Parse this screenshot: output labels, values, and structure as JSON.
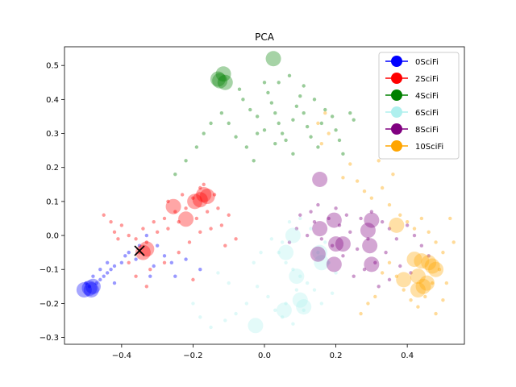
{
  "chart_data": {
    "type": "scatter",
    "title": "PCA",
    "xlabel": "",
    "ylabel": "",
    "xlim": [
      -0.56,
      0.56
    ],
    "ylim": [
      -0.32,
      0.555
    ],
    "x_ticks": [
      -0.4,
      -0.2,
      0.0,
      0.2,
      0.4
    ],
    "x_tick_labels": [
      "−0.4",
      "−0.2",
      "0.0",
      "0.2",
      "0.4"
    ],
    "y_ticks": [
      -0.3,
      -0.2,
      -0.1,
      0.0,
      0.1,
      0.2,
      0.3,
      0.4,
      0.5
    ],
    "y_tick_labels": [
      "−0.3",
      "−0.2",
      "−0.1",
      "0.0",
      "0.1",
      "0.2",
      "0.3",
      "0.4",
      "0.5"
    ],
    "grid": false,
    "legend_position": "top-right",
    "series": [
      {
        "name": "0SciFi",
        "color": "#0000ff",
        "small_points": [
          [
            -0.49,
            -0.15
          ],
          [
            -0.47,
            -0.14
          ],
          [
            -0.46,
            -0.13
          ],
          [
            -0.45,
            -0.12
          ],
          [
            -0.44,
            -0.11
          ],
          [
            -0.43,
            -0.1
          ],
          [
            -0.42,
            -0.09
          ],
          [
            -0.46,
            -0.1
          ],
          [
            -0.44,
            -0.08
          ],
          [
            -0.4,
            -0.08
          ],
          [
            -0.38,
            -0.05
          ],
          [
            -0.35,
            -0.03
          ],
          [
            -0.33,
            0.0
          ],
          [
            -0.3,
            -0.03
          ],
          [
            -0.28,
            -0.06
          ],
          [
            -0.26,
            -0.08
          ],
          [
            -0.22,
            -0.07
          ],
          [
            -0.18,
            -0.1
          ],
          [
            -0.25,
            -0.12
          ],
          [
            -0.31,
            -0.09
          ],
          [
            -0.36,
            -0.07
          ],
          [
            -0.39,
            -0.06
          ],
          [
            -0.48,
            -0.12
          ],
          [
            -0.5,
            -0.14
          ],
          [
            -0.42,
            -0.14
          ],
          [
            -0.32,
            -0.12
          ]
        ],
        "large_points": [
          [
            -0.49,
            -0.155
          ],
          [
            -0.485,
            -0.16
          ],
          [
            -0.505,
            -0.16
          ],
          [
            -0.48,
            -0.15
          ]
        ]
      },
      {
        "name": "2SciFi",
        "color": "#ff0000",
        "small_points": [
          [
            -0.43,
            0.04
          ],
          [
            -0.4,
            0.03
          ],
          [
            -0.42,
            0.01
          ],
          [
            -0.38,
            0.0
          ],
          [
            -0.36,
            -0.01
          ],
          [
            -0.34,
            0.02
          ],
          [
            -0.31,
            0.04
          ],
          [
            -0.28,
            0.05
          ],
          [
            -0.25,
            0.07
          ],
          [
            -0.22,
            0.08
          ],
          [
            -0.2,
            0.11
          ],
          [
            -0.18,
            0.14
          ],
          [
            -0.17,
            0.15
          ],
          [
            -0.14,
            0.12
          ],
          [
            -0.13,
            0.08
          ],
          [
            -0.16,
            0.07
          ],
          [
            -0.19,
            0.05
          ],
          [
            -0.24,
            0.04
          ],
          [
            -0.27,
            0.02
          ],
          [
            -0.3,
            0.01
          ],
          [
            -0.33,
            -0.02
          ],
          [
            -0.35,
            -0.05
          ],
          [
            -0.38,
            -0.08
          ],
          [
            -0.32,
            -0.1
          ],
          [
            -0.28,
            -0.08
          ],
          [
            -0.24,
            -0.05
          ],
          [
            -0.21,
            -0.02
          ],
          [
            -0.18,
            0.01
          ],
          [
            -0.15,
            0.02
          ],
          [
            -0.12,
            0.03
          ],
          [
            -0.1,
            0.06
          ],
          [
            -0.08,
            -0.01
          ],
          [
            -0.11,
            -0.03
          ],
          [
            -0.2,
            -0.13
          ],
          [
            -0.33,
            -0.15
          ],
          [
            -0.36,
            -0.12
          ],
          [
            -0.45,
            0.06
          ],
          [
            -0.41,
            -0.01
          ],
          [
            -0.27,
            0.1
          ],
          [
            -0.23,
            0.12
          ]
        ],
        "large_points": [
          [
            -0.255,
            0.085
          ],
          [
            -0.22,
            0.048
          ],
          [
            -0.195,
            0.1
          ],
          [
            -0.18,
            0.105
          ],
          [
            -0.17,
            0.12
          ],
          [
            -0.16,
            0.115
          ],
          [
            -0.33,
            -0.04
          ],
          [
            -0.34,
            -0.05
          ]
        ]
      },
      {
        "name": "4SciFi",
        "color": "#008000",
        "small_points": [
          [
            -0.07,
            0.43
          ],
          [
            -0.06,
            0.4
          ],
          [
            -0.04,
            0.37
          ],
          [
            -0.02,
            0.35
          ],
          [
            0.0,
            0.45
          ],
          [
            0.01,
            0.42
          ],
          [
            0.02,
            0.39
          ],
          [
            0.03,
            0.36
          ],
          [
            0.04,
            0.33
          ],
          [
            0.05,
            0.3
          ],
          [
            0.06,
            0.28
          ],
          [
            0.08,
            0.34
          ],
          [
            0.09,
            0.38
          ],
          [
            0.1,
            0.41
          ],
          [
            0.11,
            0.36
          ],
          [
            0.12,
            0.32
          ],
          [
            0.13,
            0.29
          ],
          [
            0.15,
            0.26
          ],
          [
            0.16,
            0.33
          ],
          [
            0.17,
            0.37
          ],
          [
            0.19,
            0.35
          ],
          [
            0.2,
            0.31
          ],
          [
            0.21,
            0.28
          ],
          [
            0.22,
            0.24
          ],
          [
            0.24,
            0.36
          ],
          [
            0.25,
            0.34
          ],
          [
            -0.02,
            0.3
          ],
          [
            -0.05,
            0.26
          ],
          [
            -0.08,
            0.29
          ],
          [
            -0.1,
            0.33
          ],
          [
            -0.12,
            0.36
          ],
          [
            -0.15,
            0.33
          ],
          [
            -0.17,
            0.3
          ],
          [
            -0.19,
            0.26
          ],
          [
            -0.22,
            0.22
          ],
          [
            -0.25,
            0.18
          ],
          [
            0.04,
            0.45
          ],
          [
            0.07,
            0.47
          ],
          [
            0.11,
            0.44
          ],
          [
            0.0,
            0.31
          ],
          [
            0.03,
            0.27
          ],
          [
            0.08,
            0.24
          ],
          [
            -0.03,
            0.22
          ],
          [
            0.14,
            0.4
          ]
        ],
        "large_points": [
          [
            -0.13,
            0.46
          ],
          [
            -0.115,
            0.475
          ],
          [
            -0.11,
            0.45
          ],
          [
            -0.125,
            0.455
          ],
          [
            0.025,
            0.52
          ]
        ]
      },
      {
        "name": "6SciFi",
        "color": "#aff0ee",
        "small_points": [
          [
            0.04,
            -0.05
          ],
          [
            0.06,
            -0.08
          ],
          [
            0.08,
            -0.1
          ],
          [
            0.1,
            -0.12
          ],
          [
            0.12,
            -0.14
          ],
          [
            0.14,
            -0.16
          ],
          [
            0.09,
            -0.16
          ],
          [
            0.06,
            -0.2
          ],
          [
            0.03,
            -0.22
          ],
          [
            0.01,
            -0.18
          ],
          [
            -0.02,
            -0.15
          ],
          [
            -0.05,
            -0.2
          ],
          [
            -0.08,
            -0.23
          ],
          [
            -0.11,
            -0.25
          ],
          [
            -0.15,
            -0.27
          ],
          [
            -0.18,
            -0.24
          ],
          [
            -0.2,
            -0.2
          ],
          [
            0.15,
            -0.05
          ],
          [
            0.18,
            -0.08
          ],
          [
            0.2,
            -0.11
          ],
          [
            0.17,
            -0.02
          ],
          [
            0.13,
            0.02
          ],
          [
            0.1,
            0.05
          ],
          [
            0.07,
            0.04
          ],
          [
            0.05,
            -0.02
          ],
          [
            0.02,
            -0.01
          ],
          [
            -0.01,
            -0.05
          ],
          [
            -0.03,
            -0.08
          ],
          [
            0.11,
            -0.22
          ],
          [
            0.08,
            -0.26
          ],
          [
            0.05,
            -0.24
          ],
          [
            -0.13,
            -0.11
          ],
          [
            -0.1,
            -0.14
          ],
          [
            0.19,
            -0.17
          ],
          [
            0.16,
            -0.2
          ]
        ],
        "large_points": [
          [
            0.08,
            0.0
          ],
          [
            0.06,
            -0.05
          ],
          [
            0.09,
            -0.12
          ],
          [
            0.055,
            -0.22
          ],
          [
            0.1,
            -0.19
          ],
          [
            0.11,
            -0.21
          ],
          [
            -0.025,
            -0.265
          ],
          [
            0.155,
            -0.05
          ],
          [
            0.16,
            -0.08
          ]
        ]
      },
      {
        "name": "8SciFi",
        "color": "#800080",
        "small_points": [
          [
            0.1,
            0.06
          ],
          [
            0.13,
            0.07
          ],
          [
            0.15,
            0.09
          ],
          [
            0.18,
            0.05
          ],
          [
            0.21,
            0.03
          ],
          [
            0.24,
            0.01
          ],
          [
            0.27,
            0.05
          ],
          [
            0.3,
            0.07
          ],
          [
            0.33,
            0.04
          ],
          [
            0.35,
            0.02
          ],
          [
            0.37,
            -0.01
          ],
          [
            0.34,
            -0.05
          ],
          [
            0.31,
            -0.08
          ],
          [
            0.28,
            -0.1
          ],
          [
            0.25,
            -0.12
          ],
          [
            0.22,
            -0.06
          ],
          [
            0.19,
            -0.03
          ],
          [
            0.16,
            -0.01
          ],
          [
            0.12,
            0.0
          ],
          [
            0.4,
            0.03
          ],
          [
            0.42,
            0.0
          ],
          [
            0.44,
            -0.03
          ],
          [
            0.38,
            -0.09
          ],
          [
            0.35,
            -0.13
          ],
          [
            0.32,
            -0.15
          ],
          [
            0.26,
            -0.04
          ],
          [
            0.23,
            0.06
          ],
          [
            0.2,
            0.08
          ],
          [
            0.14,
            0.04
          ],
          [
            0.09,
            0.02
          ],
          [
            0.07,
            -0.02
          ],
          [
            0.29,
            -0.01
          ],
          [
            0.46,
            -0.06
          ],
          [
            0.41,
            -0.11
          ]
        ],
        "large_points": [
          [
            0.155,
            0.165
          ],
          [
            0.155,
            0.02
          ],
          [
            0.195,
            0.045
          ],
          [
            0.15,
            -0.055
          ],
          [
            0.2,
            -0.025
          ],
          [
            0.22,
            -0.025
          ],
          [
            0.195,
            -0.085
          ],
          [
            0.3,
            0.045
          ],
          [
            0.29,
            0.015
          ],
          [
            0.295,
            -0.03
          ],
          [
            0.3,
            -0.085
          ]
        ]
      },
      {
        "name": "10SciFi",
        "color": "#ffa500",
        "small_points": [
          [
            0.22,
            0.17
          ],
          [
            0.24,
            0.21
          ],
          [
            0.26,
            0.16
          ],
          [
            0.28,
            0.13
          ],
          [
            0.3,
            0.11
          ],
          [
            0.33,
            0.14
          ],
          [
            0.35,
            0.09
          ],
          [
            0.38,
            0.06
          ],
          [
            0.4,
            0.04
          ],
          [
            0.42,
            0.02
          ],
          [
            0.44,
            0.05
          ],
          [
            0.46,
            0.01
          ],
          [
            0.48,
            -0.02
          ],
          [
            0.5,
            -0.05
          ],
          [
            0.49,
            -0.1
          ],
          [
            0.47,
            -0.14
          ],
          [
            0.45,
            -0.18
          ],
          [
            0.43,
            -0.21
          ],
          [
            0.41,
            -0.19
          ],
          [
            0.39,
            -0.16
          ],
          [
            0.37,
            -0.12
          ],
          [
            0.35,
            -0.08
          ],
          [
            0.33,
            -0.11
          ],
          [
            0.31,
            -0.18
          ],
          [
            0.29,
            -0.2
          ],
          [
            0.27,
            -0.23
          ],
          [
            0.51,
            -0.14
          ],
          [
            0.5,
            -0.19
          ],
          [
            0.48,
            -0.23
          ],
          [
            0.52,
            0.05
          ],
          [
            0.53,
            -0.02
          ],
          [
            0.36,
            0.18
          ],
          [
            0.32,
            0.22
          ],
          [
            0.18,
            0.3
          ],
          [
            0.17,
            0.36
          ],
          [
            0.15,
            0.33
          ],
          [
            0.16,
            0.27
          ]
        ],
        "large_points": [
          [
            0.37,
            0.03
          ],
          [
            0.42,
            -0.07
          ],
          [
            0.44,
            -0.075
          ],
          [
            0.46,
            -0.08
          ],
          [
            0.47,
            -0.09
          ],
          [
            0.48,
            -0.1
          ],
          [
            0.43,
            -0.12
          ],
          [
            0.39,
            -0.13
          ],
          [
            0.455,
            -0.14
          ],
          [
            0.445,
            -0.15
          ],
          [
            0.43,
            -0.16
          ]
        ]
      }
    ],
    "annotation_marker": {
      "symbol": "x",
      "x": -0.35,
      "y": -0.045,
      "color": "#000000"
    }
  }
}
